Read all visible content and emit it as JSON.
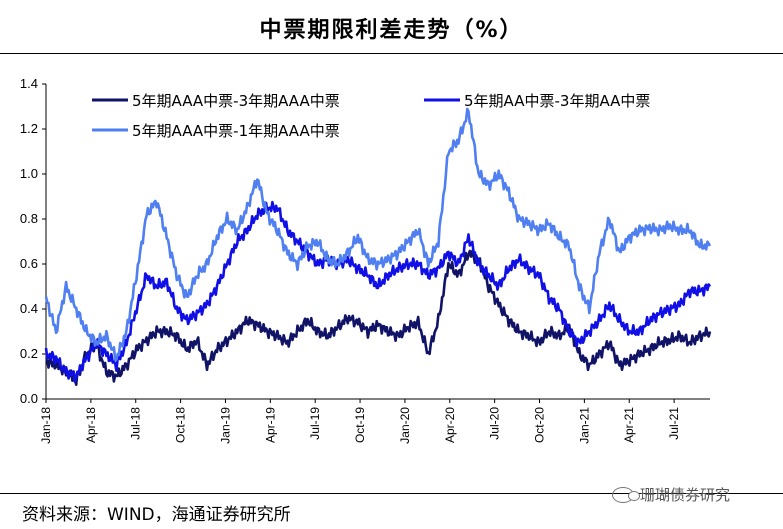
{
  "header": {
    "title": "中票期限利差走势（%）"
  },
  "footer": {
    "source": "资料来源：WIND，海通证券研究所",
    "watermark": "珊瑚债券研究"
  },
  "colors": {
    "navy": "#101366",
    "blue": "#1010e6",
    "light_blue": "#4f7ff0"
  },
  "chart_data": {
    "type": "line",
    "title": "中票期限利差走势（%）",
    "xlabel": "",
    "ylabel": "",
    "ylim": [
      0,
      1.4
    ],
    "yticks": [
      "0.0",
      "0.2",
      "0.4",
      "0.6",
      "0.8",
      "1.0",
      "1.2",
      "1.4"
    ],
    "xticks": [
      "Jan-18",
      "Apr-18",
      "Jul-18",
      "Oct-18",
      "Jan-19",
      "Apr-19",
      "Jul-19",
      "Oct-19",
      "Jan-20",
      "Apr-20",
      "Jul-20",
      "Oct-20",
      "Jan-21",
      "Apr-21",
      "Jul-21"
    ],
    "grid": false,
    "legend": "top",
    "series": [
      {
        "name": "5年期AAA中票-3年期AAA中票",
        "color": "#101366",
        "values": [
          0.17,
          0.15,
          0.12,
          0.08,
          0.2,
          0.24,
          0.12,
          0.1,
          0.15,
          0.22,
          0.26,
          0.3,
          0.3,
          0.28,
          0.22,
          0.26,
          0.15,
          0.22,
          0.26,
          0.3,
          0.35,
          0.33,
          0.3,
          0.28,
          0.25,
          0.3,
          0.35,
          0.3,
          0.28,
          0.32,
          0.36,
          0.34,
          0.3,
          0.33,
          0.3,
          0.28,
          0.32,
          0.34,
          0.2,
          0.35,
          0.6,
          0.55,
          0.65,
          0.62,
          0.5,
          0.42,
          0.35,
          0.3,
          0.28,
          0.25,
          0.3,
          0.28,
          0.32,
          0.2,
          0.15,
          0.2,
          0.25,
          0.15,
          0.17,
          0.2,
          0.22,
          0.25,
          0.26,
          0.28,
          0.25,
          0.28,
          0.3
        ]
      },
      {
        "name": "5年期AA中票-3年期AA中票",
        "color": "#1010e6",
        "values": [
          0.2,
          0.18,
          0.12,
          0.1,
          0.18,
          0.25,
          0.2,
          0.15,
          0.25,
          0.4,
          0.55,
          0.5,
          0.52,
          0.4,
          0.35,
          0.38,
          0.42,
          0.5,
          0.6,
          0.7,
          0.75,
          0.82,
          0.85,
          0.85,
          0.75,
          0.7,
          0.65,
          0.6,
          0.62,
          0.6,
          0.62,
          0.58,
          0.55,
          0.5,
          0.55,
          0.58,
          0.6,
          0.6,
          0.55,
          0.58,
          0.65,
          0.6,
          0.72,
          0.6,
          0.55,
          0.5,
          0.58,
          0.62,
          0.58,
          0.55,
          0.45,
          0.4,
          0.3,
          0.25,
          0.3,
          0.35,
          0.42,
          0.35,
          0.3,
          0.3,
          0.35,
          0.38,
          0.4,
          0.42,
          0.48,
          0.48,
          0.5
        ]
      },
      {
        "name": "5年期AAA中票-1年期AAA中票",
        "color": "#4f7ff0",
        "values": [
          0.45,
          0.3,
          0.5,
          0.4,
          0.3,
          0.25,
          0.28,
          0.18,
          0.3,
          0.55,
          0.82,
          0.88,
          0.72,
          0.55,
          0.45,
          0.55,
          0.6,
          0.72,
          0.8,
          0.75,
          0.85,
          0.98,
          0.82,
          0.75,
          0.65,
          0.6,
          0.68,
          0.7,
          0.62,
          0.6,
          0.65,
          0.72,
          0.62,
          0.6,
          0.62,
          0.65,
          0.7,
          0.75,
          0.6,
          0.7,
          1.1,
          1.15,
          1.28,
          1.0,
          0.95,
          1.0,
          0.92,
          0.8,
          0.78,
          0.75,
          0.78,
          0.72,
          0.68,
          0.5,
          0.4,
          0.65,
          0.8,
          0.65,
          0.72,
          0.75,
          0.76,
          0.75,
          0.77,
          0.75,
          0.75,
          0.68,
          0.68
        ]
      }
    ]
  }
}
